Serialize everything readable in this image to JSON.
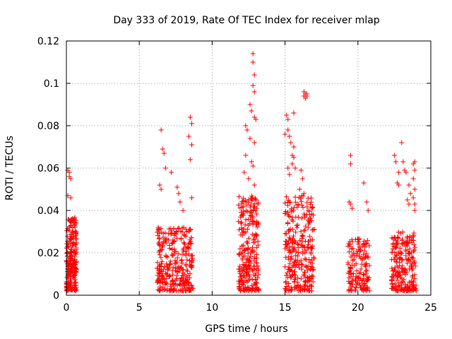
{
  "chart_data": {
    "type": "scatter",
    "title": "Day 333 of 2019, Rate Of TEC Index for receiver mlap",
    "xlabel": "GPS time / hours",
    "ylabel": "ROTI / TECUs",
    "xlim": [
      0,
      25
    ],
    "ylim": [
      0,
      0.12
    ],
    "xticks": [
      0,
      5,
      10,
      15,
      20,
      25
    ],
    "xtick_labels": [
      "0",
      "5",
      "10",
      "15",
      "20",
      "25"
    ],
    "yticks": [
      0,
      0.02,
      0.04,
      0.06,
      0.08,
      0.1,
      0.12
    ],
    "ytick_labels": [
      "0",
      "0.02",
      "0.04",
      "0.06",
      "0.08",
      "0.1",
      "0.12"
    ],
    "grid": true,
    "marker": "+",
    "color": "#ff0000",
    "series": [
      {
        "name": "ROTI",
        "clusters": [
          {
            "x_range": [
              0.0,
              0.7
            ],
            "y_core_max": 0.035,
            "count": 220
          },
          {
            "x_range": [
              6.2,
              8.7
            ],
            "y_core_max": 0.03,
            "count": 320
          },
          {
            "x_range": [
              11.8,
              13.2
            ],
            "y_core_max": 0.045,
            "count": 260
          },
          {
            "x_range": [
              15.0,
              17.0
            ],
            "y_core_max": 0.045,
            "count": 300
          },
          {
            "x_range": [
              19.3,
              20.8
            ],
            "y_core_max": 0.025,
            "count": 150
          },
          {
            "x_range": [
              22.3,
              24.0
            ],
            "y_core_max": 0.028,
            "count": 220
          }
        ],
        "points": [
          [
            0.1,
            0.059
          ],
          [
            0.2,
            0.058
          ],
          [
            0.2,
            0.056
          ],
          [
            0.3,
            0.055
          ],
          [
            0.1,
            0.047
          ],
          [
            0.3,
            0.046
          ],
          [
            6.5,
            0.078
          ],
          [
            6.6,
            0.069
          ],
          [
            6.7,
            0.067
          ],
          [
            6.8,
            0.06
          ],
          [
            6.4,
            0.052
          ],
          [
            6.5,
            0.05
          ],
          [
            7.2,
            0.058
          ],
          [
            7.6,
            0.051
          ],
          [
            7.7,
            0.048
          ],
          [
            7.8,
            0.044
          ],
          [
            8.0,
            0.04
          ],
          [
            8.5,
            0.084
          ],
          [
            8.6,
            0.081
          ],
          [
            8.4,
            0.075
          ],
          [
            8.6,
            0.071
          ],
          [
            8.5,
            0.064
          ],
          [
            8.6,
            0.046
          ],
          [
            12.8,
            0.114
          ],
          [
            12.8,
            0.11
          ],
          [
            12.9,
            0.104
          ],
          [
            12.8,
            0.099
          ],
          [
            12.9,
            0.096
          ],
          [
            12.6,
            0.09
          ],
          [
            12.7,
            0.087
          ],
          [
            12.9,
            0.084
          ],
          [
            13.0,
            0.083
          ],
          [
            12.3,
            0.08
          ],
          [
            12.4,
            0.078
          ],
          [
            12.6,
            0.074
          ],
          [
            12.9,
            0.072
          ],
          [
            12.3,
            0.066
          ],
          [
            12.7,
            0.063
          ],
          [
            12.8,
            0.061
          ],
          [
            12.2,
            0.058
          ],
          [
            12.5,
            0.055
          ],
          [
            12.9,
            0.052
          ],
          [
            16.3,
            0.096
          ],
          [
            16.4,
            0.095
          ],
          [
            16.3,
            0.094
          ],
          [
            16.5,
            0.094
          ],
          [
            16.4,
            0.093
          ],
          [
            16.5,
            0.095
          ],
          [
            15.1,
            0.085
          ],
          [
            15.2,
            0.083
          ],
          [
            15.6,
            0.086
          ],
          [
            15.2,
            0.078
          ],
          [
            15.0,
            0.076
          ],
          [
            15.3,
            0.075
          ],
          [
            15.4,
            0.072
          ],
          [
            15.6,
            0.07
          ],
          [
            15.5,
            0.066
          ],
          [
            15.6,
            0.065
          ],
          [
            15.5,
            0.062
          ],
          [
            15.2,
            0.06
          ],
          [
            15.7,
            0.06
          ],
          [
            15.3,
            0.057
          ],
          [
            16.1,
            0.059
          ],
          [
            16.2,
            0.055
          ],
          [
            16.0,
            0.05
          ],
          [
            16.3,
            0.048
          ],
          [
            19.5,
            0.066
          ],
          [
            19.5,
            0.062
          ],
          [
            19.4,
            0.044
          ],
          [
            19.5,
            0.043
          ],
          [
            19.6,
            0.041
          ],
          [
            20.4,
            0.053
          ],
          [
            20.6,
            0.044
          ],
          [
            20.7,
            0.04
          ],
          [
            22.5,
            0.066
          ],
          [
            22.6,
            0.063
          ],
          [
            22.8,
            0.058
          ],
          [
            23.0,
            0.072
          ],
          [
            23.1,
            0.063
          ],
          [
            23.2,
            0.059
          ],
          [
            23.3,
            0.058
          ],
          [
            22.7,
            0.053
          ],
          [
            22.8,
            0.052
          ],
          [
            23.5,
            0.052
          ],
          [
            23.6,
            0.048
          ],
          [
            23.4,
            0.045
          ],
          [
            23.5,
            0.043
          ],
          [
            23.9,
            0.063
          ],
          [
            23.8,
            0.062
          ],
          [
            23.9,
            0.059
          ],
          [
            23.8,
            0.055
          ],
          [
            23.9,
            0.05
          ],
          [
            23.8,
            0.046
          ],
          [
            23.9,
            0.043
          ],
          [
            23.9,
            0.04
          ]
        ]
      }
    ]
  }
}
